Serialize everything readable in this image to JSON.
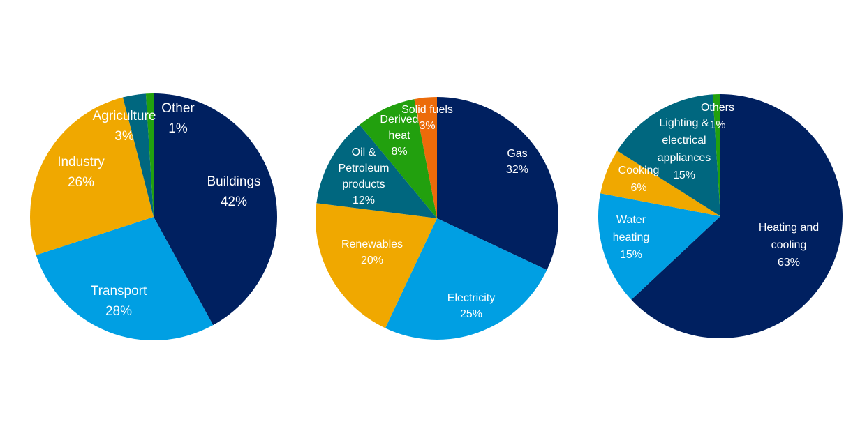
{
  "chart_data": [
    {
      "type": "pie",
      "title": "",
      "slices": [
        {
          "label": "Buildings",
          "value": 42,
          "color": "#002060",
          "pct": "42%"
        },
        {
          "label": "Transport",
          "value": 28,
          "color": "#009fe3",
          "pct": "28%"
        },
        {
          "label": "Industry",
          "value": 26,
          "color": "#f0a800",
          "pct": "26%"
        },
        {
          "label": "Agriculture",
          "value": 3,
          "color": "#00677f",
          "pct": "3%"
        },
        {
          "label": "Other",
          "value": 1,
          "color": "#22a00e",
          "pct": "1%"
        }
      ]
    },
    {
      "type": "pie",
      "title": "",
      "slices": [
        {
          "label": "Gas",
          "value": 32,
          "color": "#002060",
          "pct": "32%"
        },
        {
          "label": "Electricity",
          "value": 25,
          "color": "#009fe3",
          "pct": "25%"
        },
        {
          "label": "Renewables",
          "value": 20,
          "color": "#f0a800",
          "pct": "20%"
        },
        {
          "label": "Oil & Petroleum products",
          "value": 12,
          "color": "#00677f",
          "pct": "12%"
        },
        {
          "label": "Derived heat",
          "value": 8,
          "color": "#22a00e",
          "pct": "8%"
        },
        {
          "label": "Solid fuels",
          "value": 3,
          "color": "#ec6b0a",
          "pct": "3%"
        }
      ]
    },
    {
      "type": "pie",
      "title": "",
      "slices": [
        {
          "label": "Heating and cooling",
          "value": 63,
          "color": "#002060",
          "pct": "63%"
        },
        {
          "label": "Water heating",
          "value": 15,
          "color": "#009fe3",
          "pct": "15%"
        },
        {
          "label": "Cooking",
          "value": 6,
          "color": "#f0a800",
          "pct": "6%"
        },
        {
          "label": "Lighting & electrical appliances",
          "value": 15,
          "color": "#00677f",
          "pct": "15%"
        },
        {
          "label": "Others",
          "value": 1,
          "color": "#22a00e",
          "pct": "1%"
        }
      ]
    }
  ]
}
